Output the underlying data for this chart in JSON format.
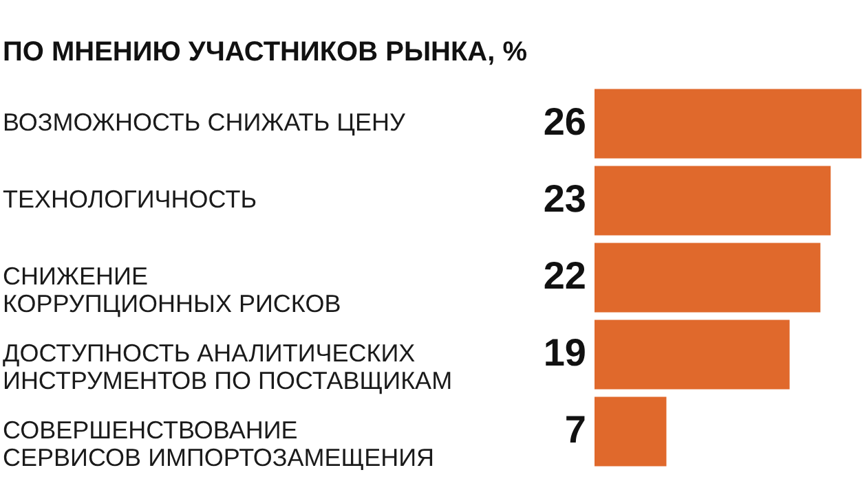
{
  "chart_data": {
    "type": "bar",
    "orientation": "horizontal",
    "title": "ПО МНЕНИЮ УЧАСТНИКОВ РЫНКА, %",
    "categories": [
      "ВОЗМОЖНОСТЬ СНИЖАТЬ ЦЕНУ",
      "ТЕХНОЛОГИЧНОСТЬ",
      "СНИЖЕНИЕ\nКОРРУПЦИОННЫХ РИСКОВ",
      "ДОСТУПНОСТЬ АНАЛИТИЧЕСКИХ\nИНСТРУМЕНТОВ ПО ПОСТАВЩИКАМ",
      "СОВЕРШЕНСТВОВАНИЕ\nСЕРВИСОВ ИМПОРТОЗАМЕЩЕНИЯ"
    ],
    "values": [
      26,
      23,
      22,
      19,
      7
    ],
    "color": "#e0692c",
    "data_labels": true
  }
}
